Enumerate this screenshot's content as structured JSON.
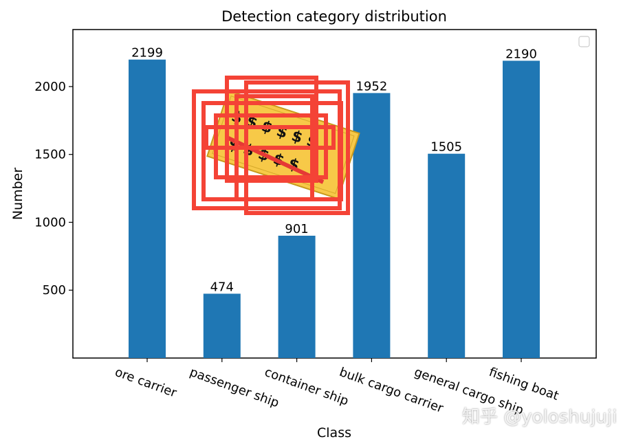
{
  "chart_data": {
    "type": "bar",
    "title": "Detection category distribution",
    "xlabel": "Class",
    "ylabel": "Number",
    "categories": [
      "ore carrier",
      "passenger ship",
      "container ship",
      "bulk cargo carrier",
      "general cargo ship",
      "fishing boat"
    ],
    "values": [
      2199,
      474,
      901,
      1952,
      1505,
      2190
    ],
    "data_labels": [
      "2199",
      "474",
      "901",
      "1952",
      "1505",
      "2190"
    ],
    "yticks": [
      500,
      1000,
      1500,
      2000
    ],
    "ylim": [
      0,
      2420
    ],
    "bar_color": "#1f77b4",
    "grid": false,
    "legend": "top-right (empty)"
  },
  "watermark": "知乎 @yoloshujuji",
  "overlay_sticker": "money-sticker-with-red-boxes"
}
